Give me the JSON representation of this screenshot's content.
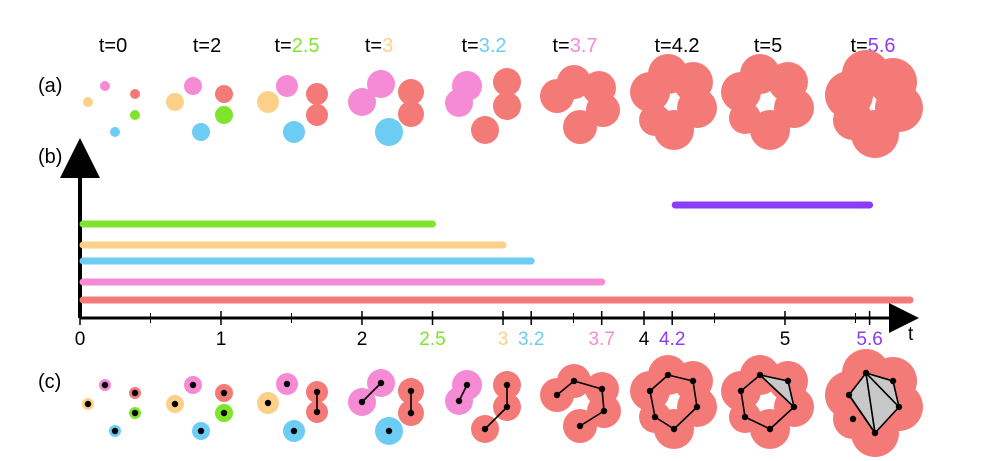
{
  "panel_labels": {
    "a": "(a)",
    "b": "(b)",
    "c": "(c)"
  },
  "colors": {
    "red": "#f47a78",
    "pink": "#f58bd4",
    "orange": "#fdd08a",
    "green": "#7ee52b",
    "blue": "#6cccf4",
    "purple": "#8c3cf4",
    "black": "#000000",
    "gray_fill": "#c8c8c8"
  },
  "frames": [
    {
      "prefix": "t=",
      "value": "0",
      "value_color": "black"
    },
    {
      "prefix": "t=",
      "value": "2",
      "value_color": "black"
    },
    {
      "prefix": "t=",
      "value": "2.5",
      "value_color": "green"
    },
    {
      "prefix": "t=",
      "value": "3",
      "value_color": "orange"
    },
    {
      "prefix": "t=",
      "value": "3.2",
      "value_color": "blue"
    },
    {
      "prefix": "t=",
      "value": "3.7",
      "value_color": "pink"
    },
    {
      "prefix": "t=",
      "value": "4.2",
      "value_color": "black"
    },
    {
      "prefix": "t=",
      "value": "5",
      "value_color": "black"
    },
    {
      "prefix": "t=",
      "value": "5.6",
      "value_color": "purple"
    }
  ],
  "barcode": {
    "axis_label": "t",
    "bars": [
      {
        "birth": 0,
        "death": 2.5,
        "color": "green",
        "dim": 0
      },
      {
        "birth": 0,
        "death": 3,
        "color": "orange",
        "dim": 0
      },
      {
        "birth": 0,
        "death": 3.2,
        "color": "blue",
        "dim": 0
      },
      {
        "birth": 0,
        "death": 3.7,
        "color": "pink",
        "dim": 0
      },
      {
        "birth": 0,
        "death": 6,
        "color": "red",
        "dim": 0
      },
      {
        "birth": 4.2,
        "death": 5.6,
        "color": "purple",
        "dim": 1
      }
    ],
    "ticks": [
      {
        "value": 0,
        "label": "0",
        "color": "black"
      },
      {
        "value": 1,
        "label": "1",
        "color": "black"
      },
      {
        "value": 2,
        "label": "2",
        "color": "black"
      },
      {
        "value": 2.5,
        "label": "2.5",
        "color": "green"
      },
      {
        "value": 3,
        "label": "3",
        "color": "orange"
      },
      {
        "value": 3.2,
        "label": "3.2",
        "color": "blue"
      },
      {
        "value": 3.7,
        "label": "3.7",
        "color": "pink"
      },
      {
        "value": 4,
        "label": "4",
        "color": "black"
      },
      {
        "value": 4.2,
        "label": "4.2",
        "color": "purple"
      },
      {
        "value": 5,
        "label": "5",
        "color": "black"
      },
      {
        "value": 5.6,
        "label": "5.6",
        "color": "purple"
      }
    ],
    "minor_ticks": [
      0.5,
      1.5,
      2.5,
      3.5,
      4.5,
      5.5
    ]
  }
}
